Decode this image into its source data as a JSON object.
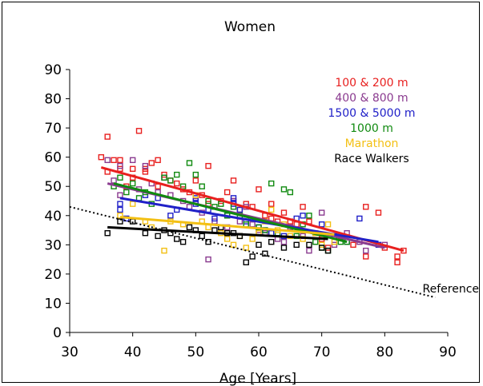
{
  "chart_data": {
    "type": "scatter",
    "title": "Women",
    "xlabel": "Age [Years]",
    "ylabel": "",
    "xlim": [
      30,
      90
    ],
    "ylim": [
      0,
      90
    ],
    "xticks": [
      "30",
      "40",
      "50",
      "60",
      "70",
      "80",
      "90"
    ],
    "yticks": [
      "0",
      "10",
      "20",
      "30",
      "40",
      "50",
      "60",
      "70",
      "80",
      "90"
    ],
    "legend_placement": "top-right",
    "grid": false,
    "series": [
      {
        "name": "100 & 200 m",
        "color": "#e8201f",
        "points": [
          [
            35,
            60
          ],
          [
            36,
            67
          ],
          [
            36,
            55
          ],
          [
            37,
            59
          ],
          [
            38,
            59
          ],
          [
            38,
            56
          ],
          [
            39,
            50
          ],
          [
            40,
            56
          ],
          [
            40,
            53
          ],
          [
            41,
            69
          ],
          [
            42,
            56
          ],
          [
            42,
            55
          ],
          [
            43,
            58
          ],
          [
            44,
            59
          ],
          [
            44,
            50
          ],
          [
            45,
            54
          ],
          [
            46,
            52
          ],
          [
            47,
            51
          ],
          [
            48,
            49
          ],
          [
            49,
            48
          ],
          [
            50,
            52
          ],
          [
            51,
            47
          ],
          [
            52,
            57
          ],
          [
            52,
            44
          ],
          [
            54,
            45
          ],
          [
            55,
            48
          ],
          [
            56,
            52
          ],
          [
            56,
            45
          ],
          [
            57,
            42
          ],
          [
            58,
            44
          ],
          [
            59,
            43
          ],
          [
            60,
            49
          ],
          [
            61,
            40
          ],
          [
            62,
            44
          ],
          [
            62,
            39
          ],
          [
            63,
            38
          ],
          [
            64,
            41
          ],
          [
            65,
            38
          ],
          [
            66,
            37
          ],
          [
            67,
            43
          ],
          [
            68,
            38
          ],
          [
            69,
            34
          ],
          [
            70,
            32
          ],
          [
            71,
            29
          ],
          [
            73,
            33
          ],
          [
            75,
            30
          ],
          [
            77,
            26
          ],
          [
            77,
            43
          ],
          [
            79,
            41
          ],
          [
            80,
            29
          ],
          [
            82,
            24
          ],
          [
            82,
            26
          ],
          [
            83,
            28
          ]
        ],
        "fit": [
          [
            35,
            56.5
          ],
          [
            83,
            28
          ]
        ]
      },
      {
        "name": "400 & 800 m",
        "color": "#8a3a8f",
        "points": [
          [
            36,
            59
          ],
          [
            37,
            52
          ],
          [
            38,
            57
          ],
          [
            38,
            47
          ],
          [
            40,
            59
          ],
          [
            41,
            49
          ],
          [
            42,
            57
          ],
          [
            43,
            51
          ],
          [
            44,
            48
          ],
          [
            45,
            53
          ],
          [
            46,
            47
          ],
          [
            48,
            45
          ],
          [
            49,
            43
          ],
          [
            50,
            45
          ],
          [
            51,
            41
          ],
          [
            52,
            25
          ],
          [
            53,
            38
          ],
          [
            55,
            36
          ],
          [
            56,
            45
          ],
          [
            57,
            38
          ],
          [
            58,
            43
          ],
          [
            59,
            37
          ],
          [
            60,
            35
          ],
          [
            61,
            34
          ],
          [
            63,
            32
          ],
          [
            64,
            31
          ],
          [
            65,
            36
          ],
          [
            67,
            33
          ],
          [
            68,
            28
          ],
          [
            69,
            31
          ],
          [
            70,
            41
          ],
          [
            72,
            30
          ],
          [
            74,
            34
          ],
          [
            76,
            31
          ],
          [
            77,
            28
          ],
          [
            80,
            30
          ]
        ],
        "fit": [
          [
            36,
            51
          ],
          [
            80,
            29
          ]
        ]
      },
      {
        "name": "1500 & 5000 m",
        "color": "#2020c8",
        "points": [
          [
            38,
            44
          ],
          [
            38,
            42
          ],
          [
            39,
            39
          ],
          [
            42,
            47
          ],
          [
            44,
            46
          ],
          [
            46,
            40
          ],
          [
            47,
            42
          ],
          [
            50,
            46
          ],
          [
            50,
            44
          ],
          [
            52,
            42
          ],
          [
            53,
            39
          ],
          [
            55,
            40
          ],
          [
            56,
            44
          ],
          [
            56,
            46
          ],
          [
            57,
            42
          ],
          [
            58,
            38
          ],
          [
            60,
            36
          ],
          [
            61,
            35
          ],
          [
            62,
            34
          ],
          [
            64,
            33
          ],
          [
            66,
            39
          ],
          [
            67,
            40
          ],
          [
            70,
            37
          ],
          [
            72,
            33
          ],
          [
            74,
            31
          ],
          [
            76,
            39
          ],
          [
            79,
            30
          ]
        ],
        "fit": [
          [
            38,
            46
          ],
          [
            79,
            31
          ]
        ]
      },
      {
        "name": "1000 m",
        "color": "#108a10",
        "points": [
          [
            37,
            50
          ],
          [
            38,
            53
          ],
          [
            39,
            48
          ],
          [
            40,
            51
          ],
          [
            41,
            46
          ],
          [
            42,
            48
          ],
          [
            43,
            44
          ],
          [
            45,
            53
          ],
          [
            46,
            52
          ],
          [
            47,
            54
          ],
          [
            48,
            50
          ],
          [
            49,
            58
          ],
          [
            50,
            54
          ],
          [
            51,
            50
          ],
          [
            52,
            45
          ],
          [
            53,
            43
          ],
          [
            54,
            44
          ],
          [
            55,
            40
          ],
          [
            56,
            43
          ],
          [
            57,
            40
          ],
          [
            58,
            37
          ],
          [
            60,
            36
          ],
          [
            61,
            35
          ],
          [
            62,
            51
          ],
          [
            63,
            34
          ],
          [
            64,
            49
          ],
          [
            65,
            48
          ],
          [
            66,
            33
          ],
          [
            67,
            37
          ],
          [
            68,
            40
          ],
          [
            69,
            31
          ],
          [
            70,
            29
          ],
          [
            71,
            28
          ],
          [
            73,
            31
          ],
          [
            74,
            31
          ]
        ],
        "fit": [
          [
            37,
            51
          ],
          [
            74,
            31
          ]
        ]
      },
      {
        "name": "Marathon",
        "color": "#f3c014",
        "points": [
          [
            38,
            40
          ],
          [
            40,
            44
          ],
          [
            42,
            38
          ],
          [
            43,
            36
          ],
          [
            45,
            28
          ],
          [
            46,
            38
          ],
          [
            48,
            37
          ],
          [
            50,
            47
          ],
          [
            51,
            38
          ],
          [
            52,
            36
          ],
          [
            54,
            34
          ],
          [
            55,
            32
          ],
          [
            56,
            30
          ],
          [
            57,
            33
          ],
          [
            58,
            29
          ],
          [
            59,
            32
          ],
          [
            60,
            34
          ],
          [
            61,
            38
          ],
          [
            62,
            42
          ],
          [
            63,
            35
          ],
          [
            64,
            37
          ],
          [
            65,
            33
          ],
          [
            67,
            32
          ],
          [
            69,
            34
          ],
          [
            70,
            30
          ],
          [
            71,
            37
          ],
          [
            72,
            31
          ]
        ],
        "fit": [
          [
            38,
            39.5
          ],
          [
            72,
            33.5
          ]
        ]
      },
      {
        "name": "Race Walkers",
        "color": "#000000",
        "points": [
          [
            36,
            34
          ],
          [
            38,
            38
          ],
          [
            40,
            38
          ],
          [
            42,
            34
          ],
          [
            44,
            33
          ],
          [
            45,
            35
          ],
          [
            46,
            34
          ],
          [
            47,
            32
          ],
          [
            48,
            31
          ],
          [
            49,
            36
          ],
          [
            50,
            35
          ],
          [
            51,
            33
          ],
          [
            52,
            31
          ],
          [
            53,
            35
          ],
          [
            54,
            36
          ],
          [
            55,
            34
          ],
          [
            56,
            34
          ],
          [
            57,
            33
          ],
          [
            58,
            24
          ],
          [
            59,
            26
          ],
          [
            60,
            30
          ],
          [
            61,
            27
          ],
          [
            62,
            31
          ],
          [
            64,
            29
          ],
          [
            66,
            30
          ],
          [
            68,
            30
          ],
          [
            70,
            29
          ],
          [
            71,
            28
          ]
        ],
        "fit": [
          [
            36,
            36
          ],
          [
            71,
            32
          ]
        ]
      }
    ],
    "reference": {
      "label": "Reference",
      "line": [
        [
          30,
          43
        ],
        [
          88,
          12
        ]
      ]
    }
  }
}
